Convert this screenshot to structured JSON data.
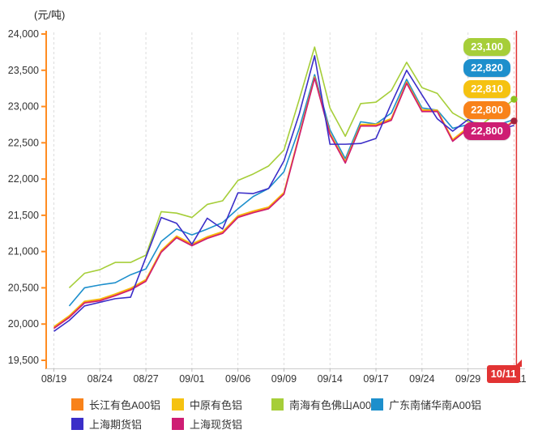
{
  "unit_label": "(元/吨)",
  "chart_data": {
    "type": "line",
    "title": "",
    "xlabel": "",
    "ylabel": "元/吨",
    "ylim": [
      19500,
      24000
    ],
    "y_tick_step": 500,
    "y_tick_labels": [
      "19,500",
      "20,000",
      "20,500",
      "21,000",
      "21,500",
      "22,000",
      "22,500",
      "23,000",
      "23,500",
      "24,000"
    ],
    "x_tick_labels": [
      "08/19",
      "08/24",
      "08/27",
      "09/01",
      "09/06",
      "09/09",
      "09/14",
      "09/17",
      "09/24",
      "09/29",
      "10/11"
    ],
    "x_label_every": 3,
    "grid": "vertical-dashed",
    "legend_position": "bottom",
    "x": [
      "08/19",
      "08/20",
      "08/23",
      "08/24",
      "08/25",
      "08/26",
      "08/27",
      "08/30",
      "08/31",
      "09/01",
      "09/02",
      "09/03",
      "09/06",
      "09/07",
      "09/08",
      "09/09",
      "09/10",
      "09/13",
      "09/14",
      "09/15",
      "09/16",
      "09/17",
      "09/22",
      "09/23",
      "09/24",
      "09/27",
      "09/28",
      "09/29",
      "09/30",
      "10/08",
      "10/11"
    ],
    "series": [
      {
        "name": "长江有色A00铝",
        "color": "#F8821A",
        "final_value": "22,800",
        "values": [
          19950,
          20100,
          20300,
          20330,
          20400,
          20480,
          20600,
          21000,
          21200,
          21090,
          21190,
          21260,
          21480,
          21545,
          21600,
          21800,
          22600,
          23400,
          22620,
          22230,
          22740,
          22740,
          22820,
          23330,
          22940,
          22940,
          22530,
          22700,
          22700,
          22640,
          22800
        ]
      },
      {
        "name": "中原有色铝",
        "color": "#F5C211",
        "final_value": "22,810",
        "values": [
          19965,
          20115,
          20315,
          20345,
          20415,
          20495,
          20615,
          21015,
          21215,
          21105,
          21205,
          21275,
          21495,
          21560,
          21615,
          21815,
          22615,
          23410,
          22635,
          22245,
          22755,
          22755,
          22835,
          23340,
          22955,
          22950,
          22545,
          22715,
          22715,
          22655,
          22810
        ]
      },
      {
        "name": "南海有色佛山A00铝",
        "color": "#A6CE39",
        "final_value": "23,100",
        "values": [
          null,
          20500,
          20700,
          20750,
          20850,
          20850,
          20950,
          21550,
          21530,
          21470,
          21650,
          21700,
          21980,
          22070,
          22180,
          22400,
          23100,
          23820,
          22980,
          22590,
          23040,
          23060,
          23220,
          23610,
          23260,
          23180,
          22910,
          22790,
          22770,
          22930,
          23100
        ]
      },
      {
        "name": "广东南储华南A00铝",
        "color": "#1D8FCC",
        "final_value": "22,820",
        "values": [
          null,
          20250,
          20500,
          20540,
          20570,
          20680,
          20760,
          21140,
          21310,
          21230,
          21310,
          21400,
          21590,
          21760,
          21870,
          22100,
          22700,
          23440,
          22680,
          22280,
          22790,
          22760,
          22910,
          23375,
          22980,
          22950,
          22700,
          22750,
          22740,
          22750,
          22820
        ]
      },
      {
        "name": "上海期货铝",
        "color": "#3B2EC8",
        "final_value": "",
        "values": [
          19900,
          20050,
          20250,
          20300,
          20350,
          20370,
          20920,
          21470,
          21390,
          21100,
          21460,
          21310,
          21810,
          21800,
          21870,
          22250,
          22900,
          23700,
          22480,
          22480,
          22490,
          22560,
          23040,
          23500,
          23160,
          22830,
          22660,
          22820,
          22700,
          22680,
          22740
        ]
      },
      {
        "name": "上海现货铝",
        "color": "#CE1D73",
        "final_value": "22,800",
        "values": [
          19940,
          20090,
          20290,
          20320,
          20390,
          20470,
          20590,
          20990,
          21190,
          21080,
          21180,
          21250,
          21470,
          21535,
          21590,
          21790,
          22590,
          23390,
          22610,
          22220,
          22730,
          22730,
          22810,
          23320,
          22930,
          22930,
          22520,
          22690,
          22690,
          22630,
          22800
        ]
      }
    ],
    "price_labels": [
      {
        "text": "23,100",
        "color": "#A6CE39"
      },
      {
        "text": "22,820",
        "color": "#1D8FCC"
      },
      {
        "text": "22,810",
        "color": "#F5C211"
      },
      {
        "text": "22,800",
        "color": "#F8821A"
      },
      {
        "text": "22,800",
        "color": "#CE1D73"
      }
    ],
    "end_markers": [
      {
        "color": "#8DC21F",
        "value": 23100
      },
      {
        "color": "#A3223C",
        "value": 22800
      }
    ],
    "highlight_date": {
      "label": "10/11",
      "color": "#E23333"
    }
  },
  "legend": {
    "items": [
      {
        "label": "长江有色A00铝",
        "color": "#F8821A",
        "row": 0,
        "col": 0
      },
      {
        "label": "中原有色铝",
        "color": "#F5C211",
        "row": 0,
        "col": 1
      },
      {
        "label": "南海有色佛山A00铝",
        "color": "#A6CE39",
        "row": 0,
        "col": 2
      },
      {
        "label": "广东南储华南A00铝",
        "color": "#1D8FCC",
        "row": 0,
        "col": 3
      },
      {
        "label": "上海期货铝",
        "color": "#3B2EC8",
        "row": 1,
        "col": 0
      },
      {
        "label": "上海现货铝",
        "color": "#CE1D73",
        "row": 1,
        "col": 1
      }
    ]
  }
}
